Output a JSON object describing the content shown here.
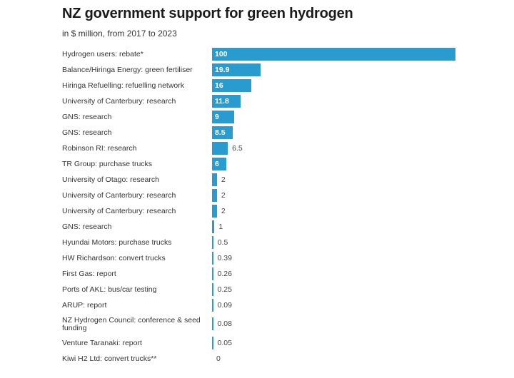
{
  "header": {
    "title": "NZ government support for green hydrogen",
    "subtitle": "in $ million, from 2017 to 2023"
  },
  "colors": {
    "bar": "#2a9bcf"
  },
  "chart_data": {
    "type": "bar",
    "orientation": "horizontal",
    "title": "NZ government support for green hydrogen",
    "subtitle": "in $ million, from 2017 to 2023",
    "xlabel": "",
    "ylabel": "",
    "grid": false,
    "categories": [
      "Hydrogen users: rebate*",
      "Balance/Hiringa Energy: green fertiliser",
      "Hiringa Refuelling: refuelling network",
      "University of Canterbury: research",
      "GNS: research",
      "GNS: research",
      "Robinson RI: research",
      "TR Group: purchase trucks",
      "University of Otago: research",
      "University of Canterbury: research",
      "University of Canterbury: research",
      "GNS: research",
      "Hyundai Motors: purchase trucks",
      "HW Richardson: convert trucks",
      "First Gas: report",
      "Ports of AKL: bus/car testing",
      "ARUP: report",
      "NZ Hydrogen Council: conference & seed funding",
      "Venture Taranaki: report",
      "Kiwi H2 Ltd: convert trucks**"
    ],
    "values": [
      100,
      19.9,
      16,
      11.8,
      9,
      8.5,
      6.5,
      6,
      2,
      2,
      2,
      1,
      0.5,
      0.39,
      0.26,
      0.25,
      0.09,
      0.08,
      0.05,
      0
    ],
    "value_labels": [
      "100",
      "19.9",
      "16",
      "11.8",
      "9",
      "8.5",
      "6.5",
      "6",
      "2",
      "2",
      "2",
      "1",
      "0.5",
      "0.39",
      "0.26",
      "0.25",
      "0.09",
      "0.08",
      "0.05",
      "0"
    ],
    "xlim": [
      0,
      100
    ]
  }
}
